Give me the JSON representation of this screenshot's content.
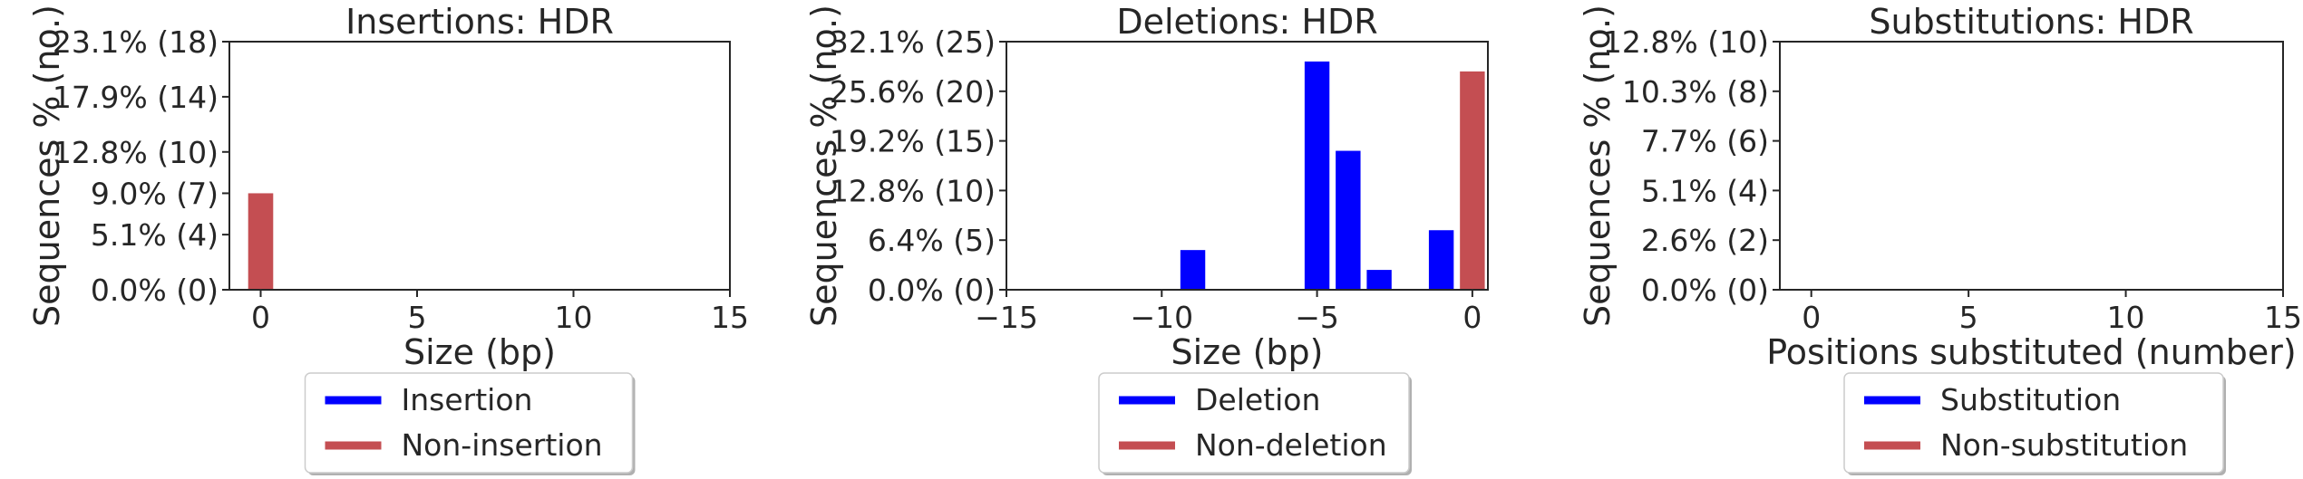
{
  "chart_data": [
    {
      "type": "bar",
      "title": "Insertions: HDR",
      "xlabel": "Size (bp)",
      "ylabel": "Sequences % (no.)",
      "xlim": [
        -1,
        15
      ],
      "ylim": [
        0,
        18
      ],
      "xticks": [
        0,
        5,
        10,
        15
      ],
      "yticks": [
        {
          "value": 0,
          "label": "0.0% (0)"
        },
        {
          "value": 4,
          "label": "5.1% (4)"
        },
        {
          "value": 7,
          "label": "9.0% (7)"
        },
        {
          "value": 10,
          "label": "12.8% (10)"
        },
        {
          "value": 14,
          "label": "17.9% (14)"
        },
        {
          "value": 18,
          "label": "23.1% (18)"
        }
      ],
      "series": [
        {
          "name": "Insertion",
          "color": "#0000ff",
          "points": []
        },
        {
          "name": "Non-insertion",
          "color": "#c44e52",
          "points": [
            {
              "x": 0,
              "y": 7
            }
          ]
        }
      ],
      "legend": "bottom-center"
    },
    {
      "type": "bar",
      "title": "Deletions: HDR",
      "xlabel": "Size (bp)",
      "ylabel": "Sequences % (no.)",
      "xlim": [
        -15,
        0.5
      ],
      "ylim": [
        0,
        25
      ],
      "xticks": [
        -15,
        -10,
        -5,
        0
      ],
      "xtick_labels": [
        "−15",
        "−10",
        "−5",
        "0"
      ],
      "yticks": [
        {
          "value": 0,
          "label": "0.0% (0)"
        },
        {
          "value": 5,
          "label": "6.4% (5)"
        },
        {
          "value": 10,
          "label": "12.8% (10)"
        },
        {
          "value": 15,
          "label": "19.2% (15)"
        },
        {
          "value": 20,
          "label": "25.6% (20)"
        },
        {
          "value": 25,
          "label": "32.1% (25)"
        }
      ],
      "series": [
        {
          "name": "Deletion",
          "color": "#0000ff",
          "points": [
            {
              "x": -9,
              "y": 4
            },
            {
              "x": -5,
              "y": 23
            },
            {
              "x": -4,
              "y": 14
            },
            {
              "x": -3,
              "y": 2
            },
            {
              "x": -1,
              "y": 6
            }
          ]
        },
        {
          "name": "Non-deletion",
          "color": "#c44e52",
          "points": [
            {
              "x": 0,
              "y": 22
            }
          ]
        }
      ],
      "legend": "bottom-center"
    },
    {
      "type": "bar",
      "title": "Substitutions: HDR",
      "xlabel": "Positions substituted (number)",
      "ylabel": "Sequences % (no.)",
      "xlim": [
        -1,
        15
      ],
      "ylim": [
        0,
        10
      ],
      "xticks": [
        0,
        5,
        10,
        15
      ],
      "yticks": [
        {
          "value": 0,
          "label": "0.0% (0)"
        },
        {
          "value": 2,
          "label": "2.6% (2)"
        },
        {
          "value": 4,
          "label": "5.1% (4)"
        },
        {
          "value": 6,
          "label": "7.7% (6)"
        },
        {
          "value": 8,
          "label": "10.3% (8)"
        },
        {
          "value": 10,
          "label": "12.8% (10)"
        }
      ],
      "series": [
        {
          "name": "Substitution",
          "color": "#0000ff",
          "points": []
        },
        {
          "name": "Non-substitution",
          "color": "#c44e52",
          "points": []
        }
      ],
      "legend": "bottom-center"
    }
  ]
}
